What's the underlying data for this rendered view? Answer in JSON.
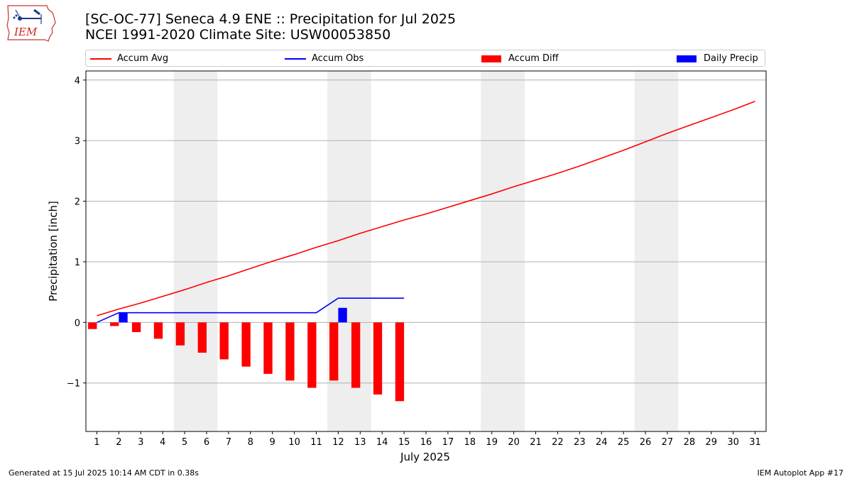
{
  "header": {
    "title_line1": "[SC-OC-77] Seneca 4.9 ENE :: Precipitation for Jul 2025",
    "title_line2": "NCEI 1991-2020 Climate Site: USW00053850",
    "logo_text": "IEM"
  },
  "footer": {
    "left": "Generated at 15 Jul 2025 10:14 AM CDT in 0.38s",
    "right": "IEM Autoplot App #17"
  },
  "colors": {
    "accum_avg": "#ff0000",
    "accum_obs": "#0000ff",
    "accum_diff": "#ff0000",
    "daily_precip": "#0000ff",
    "weekend_shade": "#eeeeee",
    "grid": "#b0b0b0"
  },
  "legend": {
    "accum_avg": "Accum Avg",
    "accum_obs": "Accum Obs",
    "accum_diff": "Accum Diff",
    "daily_precip": "Daily Precip"
  },
  "chart_data": {
    "type": "bar",
    "xlabel": "July 2025",
    "ylabel": "Precipitation [inch]",
    "xlim": [
      0.5,
      31.5
    ],
    "ylim": [
      -1.8,
      4.15
    ],
    "yticks": [
      -1,
      0,
      1,
      2,
      3,
      4
    ],
    "ytick_labels": [
      "−1",
      "0",
      "1",
      "2",
      "3",
      "4"
    ],
    "grid": "horizontal",
    "legend_position": "top",
    "days": [
      1,
      2,
      3,
      4,
      5,
      6,
      7,
      8,
      9,
      10,
      11,
      12,
      13,
      14,
      15,
      16,
      17,
      18,
      19,
      20,
      21,
      22,
      23,
      24,
      25,
      26,
      27,
      28,
      29,
      30,
      31
    ],
    "shaded_weekends": [
      [
        5,
        6
      ],
      [
        12,
        13
      ],
      [
        19,
        20
      ],
      [
        26,
        27
      ]
    ],
    "series": [
      {
        "name": "Accum Avg",
        "kind": "line",
        "x": [
          1,
          2,
          3,
          4,
          5,
          6,
          7,
          8,
          9,
          10,
          11,
          12,
          13,
          14,
          15,
          16,
          17,
          18,
          19,
          20,
          21,
          22,
          23,
          24,
          25,
          26,
          27,
          28,
          29,
          30,
          31
        ],
        "values": [
          0.11,
          0.22,
          0.32,
          0.43,
          0.54,
          0.66,
          0.77,
          0.89,
          1.01,
          1.12,
          1.24,
          1.35,
          1.47,
          1.58,
          1.69,
          1.79,
          1.9,
          2.01,
          2.12,
          2.24,
          2.35,
          2.46,
          2.58,
          2.71,
          2.84,
          2.98,
          3.12,
          3.25,
          3.38,
          3.51,
          3.65
        ]
      },
      {
        "name": "Accum Obs",
        "kind": "line",
        "x": [
          1,
          2,
          3,
          4,
          5,
          6,
          7,
          8,
          9,
          10,
          11,
          12,
          13,
          14,
          15
        ],
        "values": [
          0.0,
          0.16,
          0.16,
          0.16,
          0.16,
          0.16,
          0.16,
          0.16,
          0.16,
          0.16,
          0.16,
          0.4,
          0.4,
          0.4,
          0.4
        ]
      },
      {
        "name": "Accum Diff",
        "kind": "bar",
        "x": [
          1,
          2,
          3,
          4,
          5,
          6,
          7,
          8,
          9,
          10,
          11,
          12,
          13,
          14,
          15
        ],
        "values": [
          -0.11,
          -0.06,
          -0.16,
          -0.27,
          -0.38,
          -0.5,
          -0.61,
          -0.73,
          -0.85,
          -0.96,
          -1.08,
          -0.96,
          -1.08,
          -1.19,
          -1.3
        ]
      },
      {
        "name": "Daily Precip",
        "kind": "bar",
        "x": [
          2,
          12
        ],
        "values": [
          0.16,
          0.24
        ]
      }
    ]
  }
}
